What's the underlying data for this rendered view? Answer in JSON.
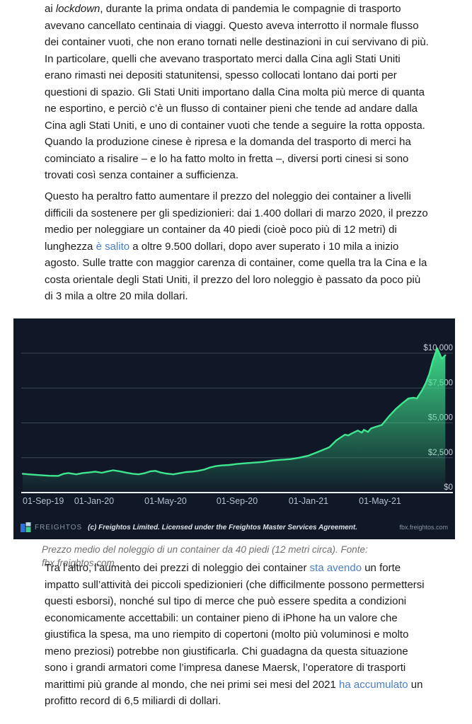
{
  "article": {
    "link_color": "#4a7dc9",
    "paragraphs": [
      {
        "segments": [
          {
            "t": "ai "
          },
          {
            "t": "lockdown",
            "style": "italic"
          },
          {
            "t": ", durante la prima ondata di pandemia le compagnie di trasporto avevano cancellato centinaia di viaggi. Questo aveva interrotto il normale flusso dei container vuoti, che non erano tornati nelle destinazioni in cui servivano di più. In particolare, quelli che avevano trasportato merci dalla Cina agli Stati Uniti erano rimasti nei depositi statunitensi, spesso collocati lontano dai porti per questioni di spazio. Gli Stati Uniti importano dalla Cina molta più merce di quanta ne esportino, e perciò c’è un flusso di container pieni che tende ad andare dalla Cina agli Stati Uniti, e uno di container vuoti che tende a seguire la rotta opposta. Quando la produzione cinese è ripresa e la domanda del trasporto di merci ha cominciato a risalire – e lo ha fatto molto in fretta –, diversi porti cinesi si sono trovati così senza container a sufficienza."
          }
        ]
      },
      {
        "segments": [
          {
            "t": "Questo ha peraltro fatto aumentare il prezzo del noleggio dei container a livelli difficili da sostenere per gli spedizionieri: dai 1.400 dollari di marzo 2020, il prezzo medio per noleggiare un container da 40 piedi (cioè poco più di 12 metri) di lunghezza "
          },
          {
            "t": "è salito",
            "style": "link"
          },
          {
            "t": " a oltre 9.500 dollari, dopo aver superato i 10 mila a inizio agosto. Sulle tratte con maggior carenza di container, come quella tra la Cina e la costa orientale degli Stati Uniti, il prezzo del loro noleggio è passato da poco più di 3 mila a oltre 20 mila dollari."
          }
        ]
      },
      {
        "segments": [
          {
            "t": "Tra l’altro, l’aumento dei prezzi di noleggio dei container "
          },
          {
            "t": "sta avendo",
            "style": "link"
          },
          {
            "t": " un forte impatto sull’attività dei piccoli spedizionieri (che difficilmente possono permettersi questi esborsi), nonché sul tipo di merce che può essere spedita a condizioni economicamente accettabili: un container pieno di iPhone ha un valore che giustifica la spesa, ma uno riempito di copertoni (molto più voluminosi e molto meno preziosi) potrebbe non giustificarla. Chi guadagna da questa situazione sono i grandi armatori come l’impresa danese Maersk, l’operatore di trasporti marittimi più grande al mondo, che nei primi sei mesi del 2021 "
          },
          {
            "t": "ha accumulato",
            "style": "link"
          },
          {
            "t": " un profitto record di 6,5 miliardi di dollari."
          }
        ]
      },
      {
        "segments": []
      }
    ],
    "caption": "Prezzo medio del noleggio di un container da 40 piedi (12 metri circa). Fonte: fbx.freightos.com"
  },
  "chart_data": {
    "type": "area",
    "title": "",
    "xlabel": "",
    "ylabel": "",
    "ylim": [
      0,
      10500
    ],
    "grid": true,
    "legend": false,
    "colors": {
      "background": "#101827",
      "line": "#3fe68f",
      "grid": "#3c4459",
      "axis": "#e9ecf2",
      "y_label": "#c7cdda",
      "x_label": "#b7c0d2"
    },
    "y_ticks": [
      {
        "label": "$10,000",
        "value": 10000
      },
      {
        "label": "$7,500",
        "value": 7500
      },
      {
        "label": "$5,000",
        "value": 5000
      },
      {
        "label": "$2,500",
        "value": 2500
      },
      {
        "label": "$0",
        "value": 0
      }
    ],
    "x_ticks": [
      {
        "label": "01-Sep-19",
        "date": "2019-09-01"
      },
      {
        "label": "01-Jan-20",
        "date": "2020-01-01"
      },
      {
        "label": "01-May-20",
        "date": "2020-05-01"
      },
      {
        "label": "01-Sep-20",
        "date": "2020-09-01"
      },
      {
        "label": "01-Jan-21",
        "date": "2021-01-01"
      },
      {
        "label": "01-May-21",
        "date": "2021-05-01"
      }
    ],
    "series": [
      {
        "name": "Prezzo medio noleggio container 40 piedi (USD)",
        "points": [
          [
            "2019-09-01",
            1350
          ],
          [
            "2019-09-15",
            1300
          ],
          [
            "2019-10-01",
            1250
          ],
          [
            "2019-10-15",
            1210
          ],
          [
            "2019-11-01",
            1200
          ],
          [
            "2019-11-10",
            1350
          ],
          [
            "2019-11-18",
            1400
          ],
          [
            "2019-12-01",
            1310
          ],
          [
            "2019-12-12",
            1400
          ],
          [
            "2019-12-24",
            1450
          ],
          [
            "2020-01-03",
            1500
          ],
          [
            "2020-01-14",
            1420
          ],
          [
            "2020-01-24",
            1520
          ],
          [
            "2020-02-03",
            1600
          ],
          [
            "2020-02-14",
            1530
          ],
          [
            "2020-02-25",
            1430
          ],
          [
            "2020-03-06",
            1350
          ],
          [
            "2020-03-16",
            1310
          ],
          [
            "2020-03-27",
            1400
          ],
          [
            "2020-04-06",
            1530
          ],
          [
            "2020-04-14",
            1560
          ],
          [
            "2020-04-22",
            1450
          ],
          [
            "2020-05-01",
            1370
          ],
          [
            "2020-05-14",
            1310
          ],
          [
            "2020-05-26",
            1400
          ],
          [
            "2020-06-05",
            1470
          ],
          [
            "2020-06-16",
            1500
          ],
          [
            "2020-06-26",
            1560
          ],
          [
            "2020-07-06",
            1650
          ],
          [
            "2020-07-16",
            1800
          ],
          [
            "2020-07-26",
            1900
          ],
          [
            "2020-08-06",
            1950
          ],
          [
            "2020-08-18",
            1980
          ],
          [
            "2020-09-01",
            2050
          ],
          [
            "2020-09-15",
            2100
          ],
          [
            "2020-10-01",
            2150
          ],
          [
            "2020-10-15",
            2200
          ],
          [
            "2020-11-01",
            2300
          ],
          [
            "2020-11-15",
            2350
          ],
          [
            "2020-12-01",
            2400
          ],
          [
            "2020-12-15",
            2500
          ],
          [
            "2021-01-01",
            2650
          ],
          [
            "2021-01-13",
            2850
          ],
          [
            "2021-01-25",
            3050
          ],
          [
            "2021-02-06",
            3250
          ],
          [
            "2021-02-18",
            3750
          ],
          [
            "2021-03-02",
            4150
          ],
          [
            "2021-03-08",
            4100
          ],
          [
            "2021-03-14",
            4250
          ],
          [
            "2021-03-24",
            4450
          ],
          [
            "2021-03-31",
            4300
          ],
          [
            "2021-04-04",
            4500
          ],
          [
            "2021-04-11",
            4350
          ],
          [
            "2021-04-16",
            4600
          ],
          [
            "2021-04-23",
            4700
          ],
          [
            "2021-05-04",
            4850
          ],
          [
            "2021-05-16",
            5450
          ],
          [
            "2021-05-28",
            6000
          ],
          [
            "2021-06-10",
            6450
          ],
          [
            "2021-06-19",
            6750
          ],
          [
            "2021-06-28",
            6800
          ],
          [
            "2021-07-03",
            6750
          ],
          [
            "2021-07-12",
            7350
          ],
          [
            "2021-07-18",
            7850
          ],
          [
            "2021-07-24",
            8500
          ],
          [
            "2021-07-30",
            9450
          ],
          [
            "2021-08-07",
            10350
          ],
          [
            "2021-08-15",
            9600
          ],
          [
            "2021-08-21",
            9850
          ]
        ]
      }
    ],
    "source_bar": {
      "brand": "FREIGHTOS",
      "license": "(c) Freightos Limited. Licensed under the Freightos Master Services Agreement.",
      "url": "fbx.freightos.com"
    }
  }
}
